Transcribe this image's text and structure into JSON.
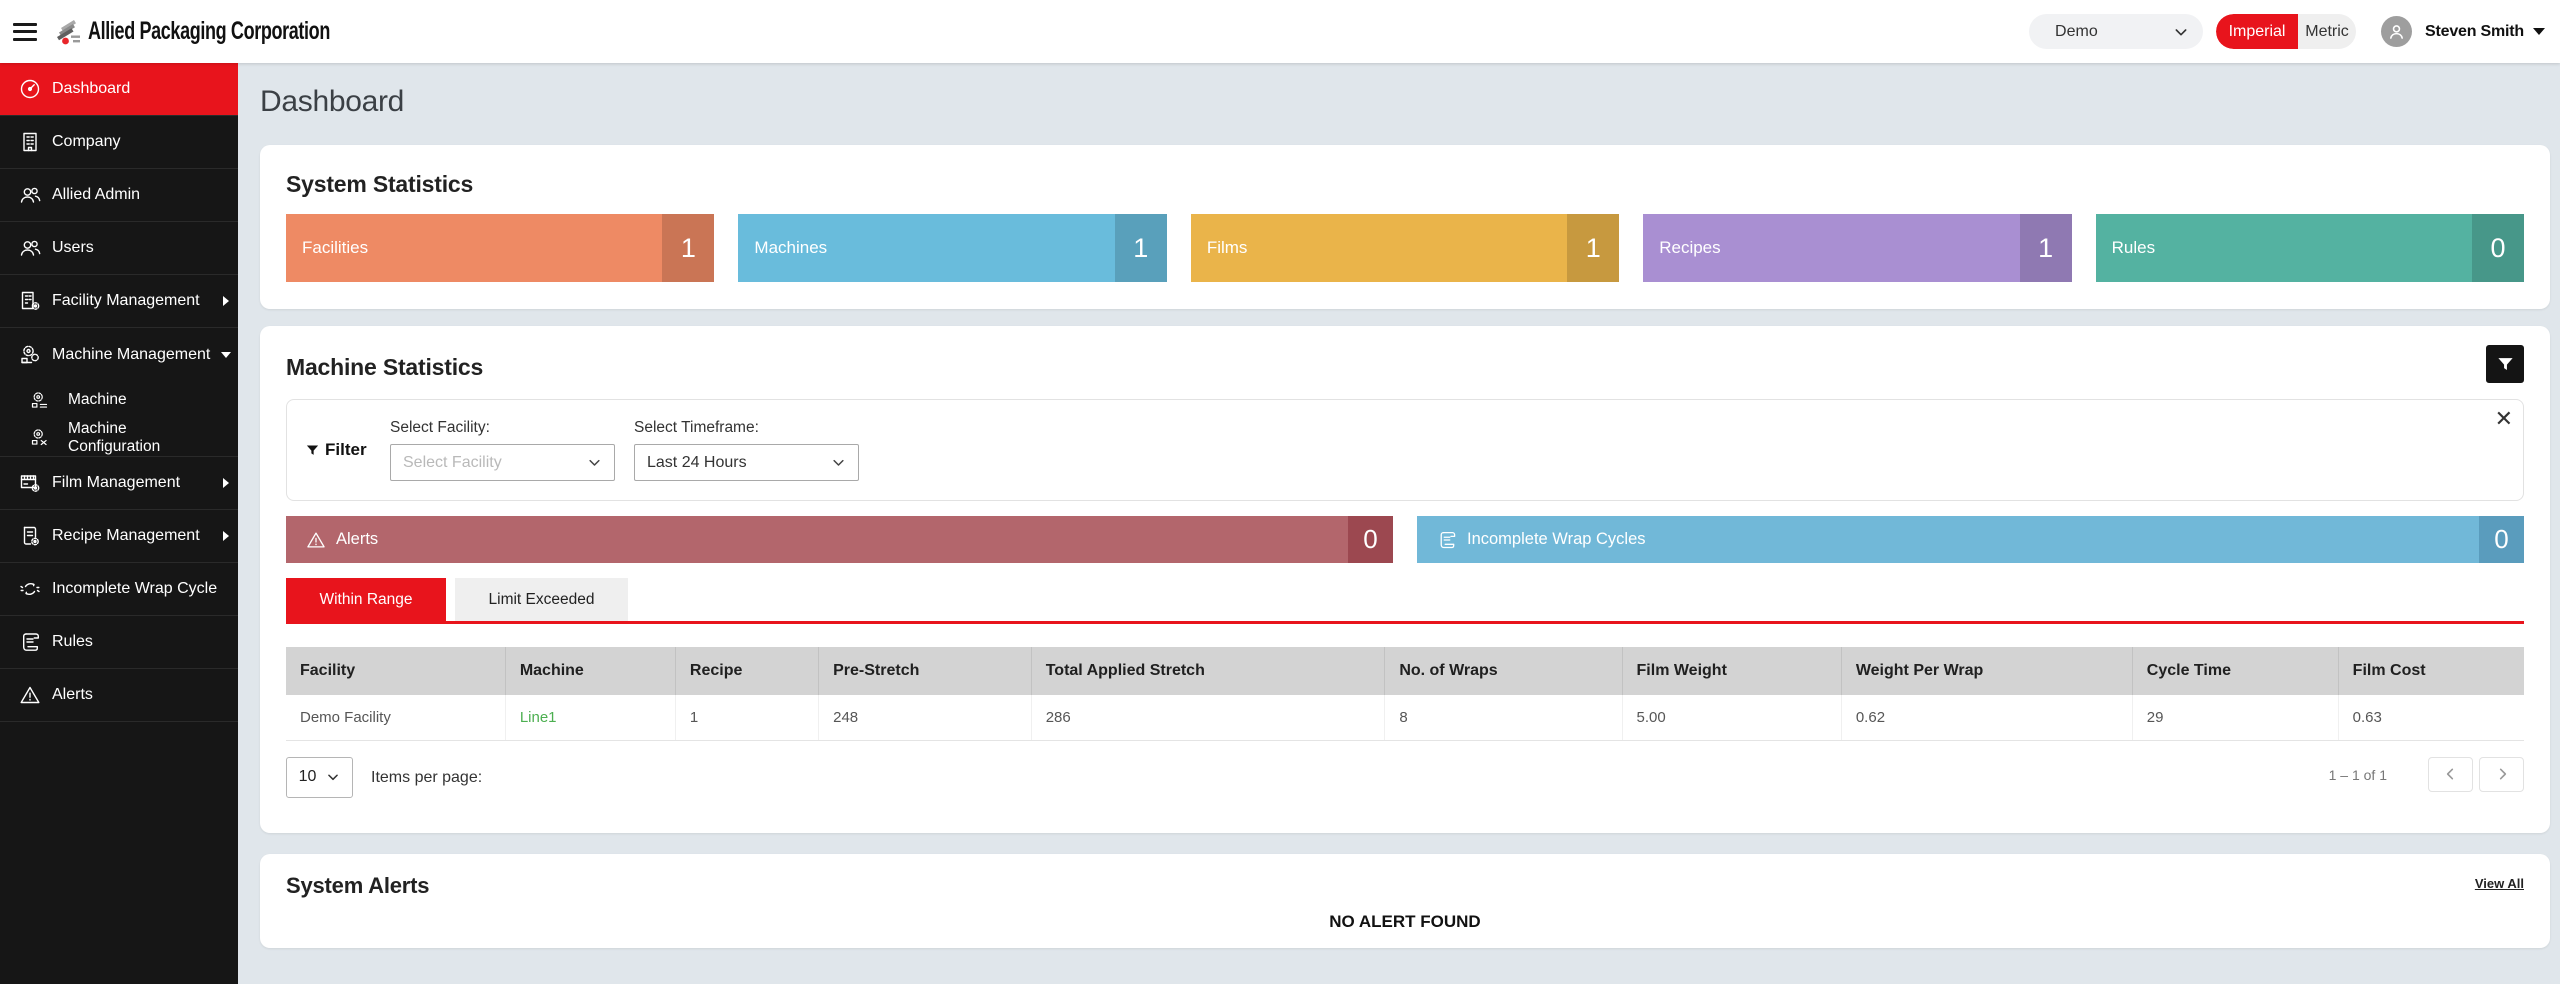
{
  "header": {
    "app_title": "Allied Packaging Corporation",
    "environment": "Demo",
    "units": {
      "imperial": "Imperial",
      "metric": "Metric",
      "selected": "Imperial"
    },
    "user": "Steven Smith"
  },
  "sidebar": {
    "items": [
      {
        "label": "Dashboard",
        "icon": "dashboard",
        "active": true
      },
      {
        "label": "Company",
        "icon": "company"
      },
      {
        "label": "Allied Admin",
        "icon": "admins"
      },
      {
        "label": "Users",
        "icon": "users"
      },
      {
        "label": "Facility Management",
        "icon": "facility",
        "expand": "right"
      },
      {
        "label": "Machine Management",
        "icon": "machine-mgmt",
        "expand": "down"
      },
      {
        "label": "Machine",
        "icon": "machine",
        "sub": true
      },
      {
        "label": "Machine Configuration",
        "icon": "machine-config",
        "sub": true
      },
      {
        "label": "Film Management",
        "icon": "film",
        "expand": "right"
      },
      {
        "label": "Recipe Management",
        "icon": "recipe",
        "expand": "right"
      },
      {
        "label": "Incomplete Wrap Cycle",
        "icon": "wrap-cycle"
      },
      {
        "label": "Rules",
        "icon": "rules"
      },
      {
        "label": "Alerts",
        "icon": "alerts"
      }
    ]
  },
  "page": {
    "title": "Dashboard"
  },
  "system_statistics": {
    "title": "System Statistics",
    "cards": [
      {
        "label": "Facilities",
        "value": "1",
        "color": "#ee8a64"
      },
      {
        "label": "Machines",
        "value": "1",
        "color": "#69bcdc"
      },
      {
        "label": "Films",
        "value": "1",
        "color": "#eab44a"
      },
      {
        "label": "Recipes",
        "value": "1",
        "color": "#a98fd2"
      },
      {
        "label": "Rules",
        "value": "0",
        "color": "#54b2a1"
      }
    ]
  },
  "machine_statistics": {
    "title": "Machine Statistics",
    "filter": {
      "label": "Filter",
      "facility_label": "Select Facility:",
      "facility_placeholder": "Select Facility",
      "timeframe_label": "Select Timeframe:",
      "timeframe_value": "Last 24 Hours"
    },
    "summary_bars": [
      {
        "label": "Alerts",
        "value": "0",
        "color": "#b3666c",
        "dark": "#9c4850",
        "icon": "warning"
      },
      {
        "label": "Incomplete Wrap Cycles",
        "value": "0",
        "color": "#71b8d8",
        "dark": "#5a9cbd",
        "icon": "scroll"
      }
    ],
    "tabs": [
      {
        "label": "Within Range",
        "active": true
      },
      {
        "label": "Limit Exceeded",
        "active": false
      }
    ],
    "table": {
      "columns": [
        "Facility",
        "Machine",
        "Recipe",
        "Pre-Stretch",
        "Total Applied Stretch",
        "No. of Wraps",
        "Film Weight",
        "Weight Per Wrap",
        "Cycle Time",
        "Film Cost"
      ],
      "rows": [
        [
          "Demo Facility",
          "Line1",
          "1",
          "248",
          "286",
          "8",
          "5.00",
          "0.62",
          "29",
          "0.63"
        ]
      ]
    },
    "pagination": {
      "page_size": "10",
      "items_per_page_label": "Items per page:",
      "range": "1 – 1 of 1"
    }
  },
  "system_alerts": {
    "title": "System Alerts",
    "view_all": "View All",
    "empty": "NO ALERT FOUND"
  }
}
